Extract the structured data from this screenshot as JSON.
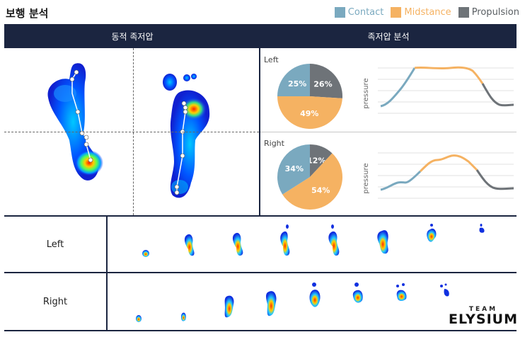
{
  "page": {
    "title": "보행 분석"
  },
  "legend": [
    {
      "label": "Contact",
      "color": "#7aa9bf"
    },
    {
      "label": "Midstance",
      "color": "#f5b262"
    },
    {
      "label": "Propulsion",
      "color": "#6e7378"
    }
  ],
  "header": {
    "left": "동적 족저압",
    "right": "족저압 분석"
  },
  "analysis": {
    "left": {
      "label": "Left",
      "pie": {
        "contact": 25,
        "midstance": 49,
        "propulsion": 26,
        "labels": [
          "25%",
          "49%",
          "26%"
        ]
      },
      "ylabel": "pressure"
    },
    "right": {
      "label": "Right",
      "pie": {
        "contact": 34,
        "midstance": 54,
        "propulsion": 12,
        "labels": [
          "34%",
          "54%",
          "12%"
        ]
      },
      "ylabel": "pressure"
    }
  },
  "table": {
    "rows": [
      {
        "label": "Left"
      },
      {
        "label": "Right"
      }
    ]
  },
  "brand": {
    "team": "TEAM",
    "name": "ELYSIUM"
  }
}
